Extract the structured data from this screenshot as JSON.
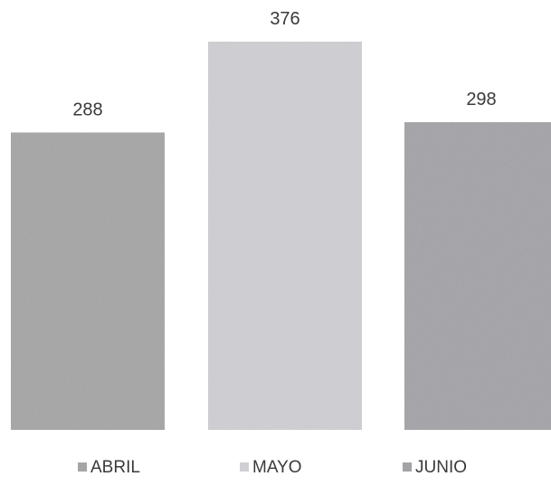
{
  "chart_data": {
    "type": "bar",
    "categories": [
      "ABRIL",
      "MAYO",
      "JUNIO"
    ],
    "values": [
      288,
      376,
      298
    ],
    "colors": [
      "#a5a5a5",
      "#cfcfd4",
      "#a3a3a8"
    ],
    "title": "",
    "xlabel": "",
    "ylabel": "",
    "ylim": [
      0,
      376
    ],
    "grid": false,
    "legend": "bottom"
  }
}
